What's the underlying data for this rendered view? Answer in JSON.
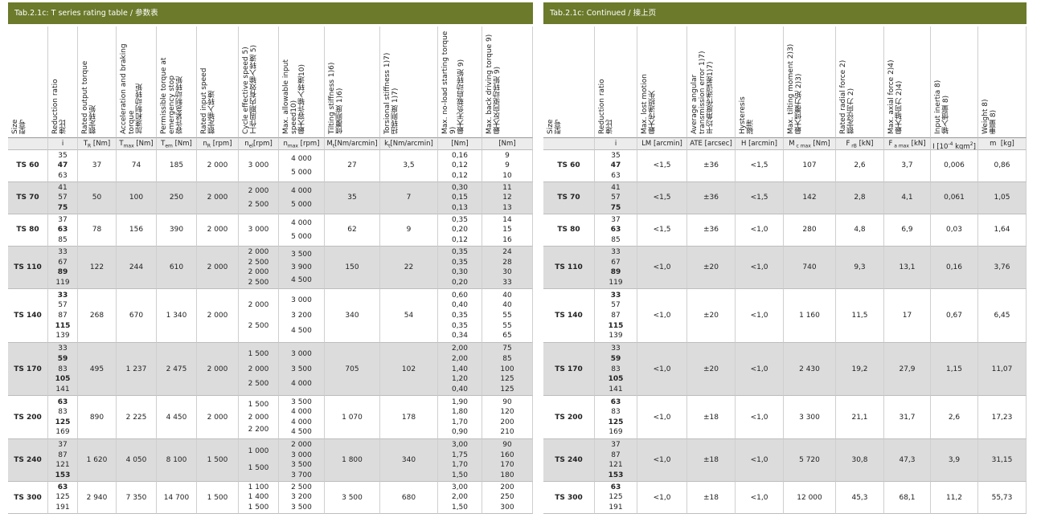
{
  "left": {
    "title": "Tab.2.1c: T series rating table / 参数表",
    "headers": [
      {
        "en": "Size",
        "zh": "型号"
      },
      {
        "en": "Reduction ratio",
        "zh": "速比"
      },
      {
        "en": "Rated output torque",
        "zh": "额定转矩"
      },
      {
        "en": "Acceleration and braking torque",
        "zh": "加速和制动转矩"
      },
      {
        "en": "Permissible torque at emergency stop",
        "zh": "容许紧急制动转矩"
      },
      {
        "en": "Rated input speed",
        "zh": "额定输入转速"
      },
      {
        "en": "Cycle effective speed 5)",
        "zh": "工作周期内有效输入转速 5)"
      },
      {
        "en": "Max. allowable input speed10)",
        "zh": "最大容许输入转速10)"
      },
      {
        "en": "Tilting stiffness 1)6)",
        "zh": "倾覆刚度 1)6)"
      },
      {
        "en": "Torsional stiffness 1)7)",
        "zh": "扭转刚度 1)7)"
      },
      {
        "en": "Max. no-load starting torque 9)",
        "zh": "最大无负载启动转矩 9)"
      },
      {
        "en": "Max. back driving torque 9)",
        "zh": "最大反向驱动转矩 9)"
      }
    ],
    "units": [
      [
        {
          "t": "i"
        }
      ],
      [
        {
          "t": "T"
        },
        {
          "t": "R",
          "s": "sub"
        },
        {
          "t": " [Nm]"
        }
      ],
      [
        {
          "t": "T"
        },
        {
          "t": "max",
          "s": "sub"
        },
        {
          "t": " [Nm]"
        }
      ],
      [
        {
          "t": "T"
        },
        {
          "t": "em",
          "s": "sub"
        },
        {
          "t": " [Nm]"
        }
      ],
      [
        {
          "t": "n"
        },
        {
          "t": "R",
          "s": "sub"
        },
        {
          "t": " [rpm]"
        }
      ],
      [
        {
          "t": "n"
        },
        {
          "t": "el",
          "s": "sub"
        },
        {
          "t": "[rpm]"
        }
      ],
      [
        {
          "t": "n"
        },
        {
          "t": "max",
          "s": "sub"
        },
        {
          "t": " [rpm]"
        }
      ],
      [
        {
          "t": "M"
        },
        {
          "t": "t",
          "s": "sub"
        },
        {
          "t": "[Nm/arcmin]"
        }
      ],
      [
        {
          "t": "k"
        },
        {
          "t": "t",
          "s": "sub"
        },
        {
          "t": "[Nm/arcmin]"
        }
      ],
      [
        {
          "t": "[Nm]"
        }
      ],
      [
        {
          "t": "[Nm]"
        }
      ]
    ],
    "groups": [
      {
        "size": "TS 60",
        "ratios": [
          {
            "i": "35"
          },
          {
            "i": "47",
            "bold": true
          },
          {
            "i": "63"
          }
        ],
        "TR": "37",
        "Tmax": "74",
        "Tem": "185",
        "nR": "2 000",
        "nel": [
          "3 000"
        ],
        "nmax": [
          "4 000",
          "5 000"
        ],
        "Mt": "27",
        "kt": "3,5",
        "noload": [
          "0,16",
          "0,12",
          "0,12"
        ],
        "back": [
          "9",
          "9",
          "10"
        ]
      },
      {
        "size": "TS 70",
        "ratios": [
          {
            "i": "41"
          },
          {
            "i": "57"
          },
          {
            "i": "75",
            "bold": true
          }
        ],
        "TR": "50",
        "Tmax": "100",
        "Tem": "250",
        "nR": "2 000",
        "nel": [
          "2 000",
          "2 500"
        ],
        "nmax": [
          "4 000",
          "5 000"
        ],
        "Mt": "35",
        "kt": "7",
        "noload": [
          "0,30",
          "0,15",
          "0,13"
        ],
        "back": [
          "11",
          "12",
          "13"
        ]
      },
      {
        "size": "TS 80",
        "ratios": [
          {
            "i": "37"
          },
          {
            "i": "63",
            "bold": true
          },
          {
            "i": "85"
          }
        ],
        "TR": "78",
        "Tmax": "156",
        "Tem": "390",
        "nR": "2 000",
        "nel": [
          "3 000"
        ],
        "nmax": [
          "4 000",
          "5 000"
        ],
        "Mt": "62",
        "kt": "9",
        "noload": [
          "0,35",
          "0,20",
          "0,12"
        ],
        "back": [
          "14",
          "15",
          "16"
        ]
      },
      {
        "size": "TS 110",
        "ratios": [
          {
            "i": "33"
          },
          {
            "i": "67"
          },
          {
            "i": "89",
            "bold": true
          },
          {
            "i": "119"
          }
        ],
        "TR": "122",
        "Tmax": "244",
        "Tem": "610",
        "nR": "2 000",
        "nel": [
          "2 000",
          "2 500",
          "2 000",
          "2 500"
        ],
        "nmax": [
          "3 500",
          "3 900",
          "4 500"
        ],
        "Mt": "150",
        "kt": "22",
        "noload": [
          "0,35",
          "0,35",
          "0,30",
          "0,20"
        ],
        "back": [
          "24",
          "28",
          "30",
          "33"
        ]
      },
      {
        "size": "TS 140",
        "ratios": [
          {
            "i": "33",
            "bold": true
          },
          {
            "i": "57"
          },
          {
            "i": "87"
          },
          {
            "i": "115",
            "bold": true
          },
          {
            "i": "139"
          }
        ],
        "TR": "268",
        "Tmax": "670",
        "Tem": "1 340",
        "nR": "2 000",
        "nel": [
          "2 000",
          "2 500"
        ],
        "nmax": [
          "3 000",
          "3 200",
          "4 500"
        ],
        "Mt": "340",
        "kt": "54",
        "noload": [
          "0,60",
          "0,40",
          "0,35",
          "0,35",
          "0,34"
        ],
        "back": [
          "40",
          "40",
          "55",
          "55",
          "65"
        ]
      },
      {
        "size": "TS 170",
        "ratios": [
          {
            "i": "33"
          },
          {
            "i": "59",
            "bold": true
          },
          {
            "i": "83"
          },
          {
            "i": "105",
            "bold": true
          },
          {
            "i": "141"
          }
        ],
        "TR": "495",
        "Tmax": "1 237",
        "Tem": "2 475",
        "nR": "2 000",
        "nel": [
          "1 500",
          "2 000",
          "2 500"
        ],
        "nmax": [
          "3 000",
          "3 500",
          "4 000"
        ],
        "Mt": "705",
        "kt": "102",
        "noload": [
          "2,00",
          "2,00",
          "1,40",
          "1,20",
          "0,40"
        ],
        "back": [
          "75",
          "85",
          "100",
          "125",
          "125"
        ]
      },
      {
        "size": "TS 200",
        "ratios": [
          {
            "i": "63",
            "bold": true
          },
          {
            "i": "83"
          },
          {
            "i": "125",
            "bold": true
          },
          {
            "i": "169"
          }
        ],
        "TR": "890",
        "Tmax": "2 225",
        "Tem": "4 450",
        "nR": "2 000",
        "nel": [
          "1 500",
          "2 000",
          "2 200"
        ],
        "nmax": [
          "3 500",
          "4 000",
          "4 000",
          "4 500"
        ],
        "Mt": "1 070",
        "kt": "178",
        "noload": [
          "1,90",
          "1,80",
          "1,70",
          "0,90"
        ],
        "back": [
          "90",
          "120",
          "200",
          "210"
        ]
      },
      {
        "size": "TS 240",
        "ratios": [
          {
            "i": "37"
          },
          {
            "i": "87"
          },
          {
            "i": "121"
          },
          {
            "i": "153",
            "bold": true
          }
        ],
        "TR": "1 620",
        "Tmax": "4 050",
        "Tem": "8 100",
        "nR": "1 500",
        "nel": [
          "1 000",
          "1 500"
        ],
        "nmax": [
          "2 000",
          "3 000",
          "3 500",
          "3 700"
        ],
        "Mt": "1 800",
        "kt": "340",
        "noload": [
          "3,00",
          "1,75",
          "1,70",
          "1,50"
        ],
        "back": [
          "90",
          "160",
          "170",
          "180"
        ]
      },
      {
        "size": "TS 300",
        "ratios": [
          {
            "i": "63",
            "bold": true
          },
          {
            "i": "125"
          },
          {
            "i": "191"
          }
        ],
        "TR": "2 940",
        "Tmax": "7 350",
        "Tem": "14 700",
        "nR": "1 500",
        "nel": [
          "1 100",
          "1 400",
          "1 500"
        ],
        "nmax": [
          "2 500",
          "3 200",
          "3 500"
        ],
        "Mt": "3 500",
        "kt": "680",
        "noload": [
          "3,00",
          "2,00",
          "1,50"
        ],
        "back": [
          "200",
          "250",
          "300"
        ]
      }
    ]
  },
  "right": {
    "title": "Tab.2.1c: Continued / 接上页",
    "headers": [
      {
        "en": "Size",
        "zh": "型号"
      },
      {
        "en": "Reduction ratio",
        "zh": "速比"
      },
      {
        "en": "Max. lost motion",
        "zh": "最大传递损失"
      },
      {
        "en": "Average angular transmission error 1)7)",
        "zh": "平均角度传递误差1)7)"
      },
      {
        "en": "Hysteresis",
        "zh": "磁滞"
      },
      {
        "en": "Max. tilting moment 2)3)",
        "zh": "最大倾覆力矩 2)3)"
      },
      {
        "en": "Rated radial force 2)",
        "zh": "额定径向力 2)"
      },
      {
        "en": "Max. axial force 2)4)",
        "zh": "最大轴向力 2)4)"
      },
      {
        "en": "Input inertia 8)",
        "zh": "输入惯量 8)"
      },
      {
        "en": "Weight 8)",
        "zh": "重量 8)"
      }
    ],
    "units": [
      [
        {
          "t": "i"
        }
      ],
      [
        {
          "t": "LM [arcmin]"
        }
      ],
      [
        {
          "t": "ATE [arcsec]"
        }
      ],
      [
        {
          "t": "H [arcmin]"
        }
      ],
      [
        {
          "t": "M"
        },
        {
          "t": " c max",
          "s": "sub"
        },
        {
          "t": " [Nm]"
        }
      ],
      [
        {
          "t": "F"
        },
        {
          "t": " rB",
          "s": "sub"
        },
        {
          "t": " [kN]"
        }
      ],
      [
        {
          "t": "F"
        },
        {
          "t": " a max",
          "s": "sub"
        },
        {
          "t": " [kN]"
        }
      ],
      [
        {
          "t": "I [10"
        },
        {
          "t": "-4",
          "s": "sup"
        },
        {
          "t": " kgm"
        },
        {
          "t": "2",
          "s": "sup"
        },
        {
          "t": "]"
        }
      ],
      [
        {
          "t": "m  [kg]"
        }
      ]
    ],
    "groups": [
      {
        "LM": "<1,5",
        "ATE": "±36",
        "H": "<1,5",
        "Mc": "107",
        "FrB": "2,6",
        "Fa": "3,7",
        "I": "0,006",
        "m": "0,86"
      },
      {
        "LM": "<1,5",
        "ATE": "±36",
        "H": "<1,5",
        "Mc": "142",
        "FrB": "2,8",
        "Fa": "4,1",
        "I": "0,061",
        "m": "1,05"
      },
      {
        "LM": "<1,5",
        "ATE": "±36",
        "H": "<1,0",
        "Mc": "280",
        "FrB": "4,8",
        "Fa": "6,9",
        "I": "0,03",
        "m": "1,64"
      },
      {
        "LM": "<1,0",
        "ATE": "±20",
        "H": "<1,0",
        "Mc": "740",
        "FrB": "9,3",
        "Fa": "13,1",
        "I": "0,16",
        "m": "3,76"
      },
      {
        "LM": "<1,0",
        "ATE": "±20",
        "H": "<1,0",
        "Mc": "1 160",
        "FrB": "11,5",
        "Fa": "17",
        "I": "0,67",
        "m": "6,45"
      },
      {
        "LM": "<1,0",
        "ATE": "±20",
        "H": "<1,0",
        "Mc": "2 430",
        "FrB": "19,2",
        "Fa": "27,9",
        "I": "1,15",
        "m": "11,07"
      },
      {
        "LM": "<1,0",
        "ATE": "±18",
        "H": "<1,0",
        "Mc": "3 300",
        "FrB": "21,1",
        "Fa": "31,7",
        "I": "2,6",
        "m": "17,23"
      },
      {
        "LM": "<1,0",
        "ATE": "±18",
        "H": "<1,0",
        "Mc": "5 720",
        "FrB": "30,8",
        "Fa": "47,3",
        "I": "3,9",
        "m": "31,15"
      },
      {
        "LM": "<1,0",
        "ATE": "±18",
        "H": "<1,0",
        "Mc": "12 000",
        "FrB": "45,3",
        "Fa": "68,1",
        "I": "11,2",
        "m": "55,73"
      }
    ]
  }
}
